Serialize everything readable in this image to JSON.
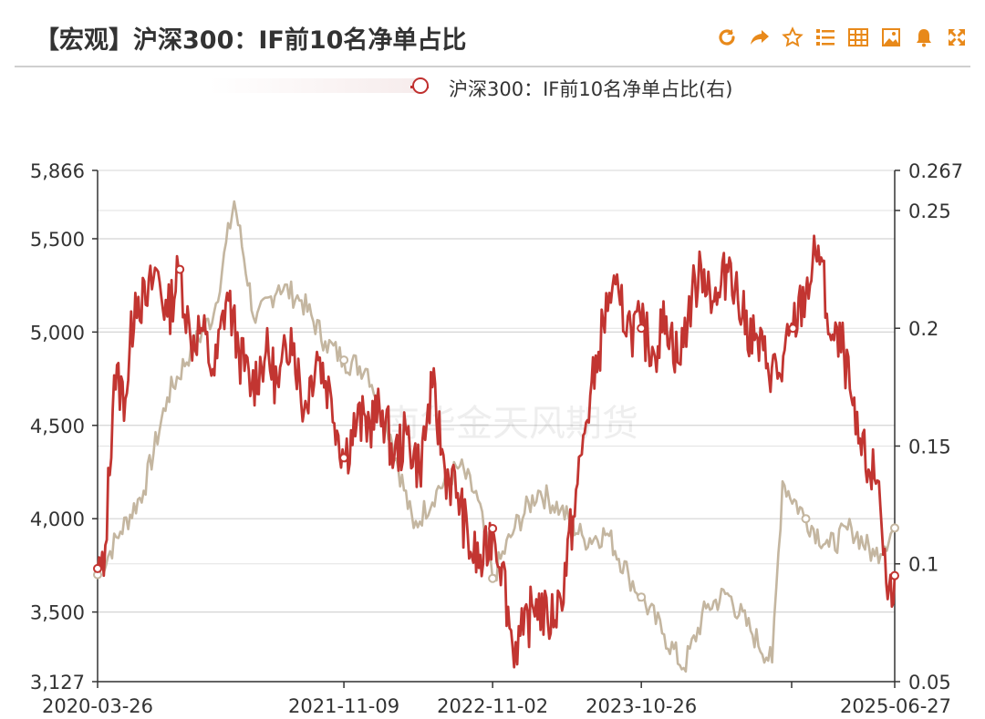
{
  "header": {
    "title": "【宏观】沪深300：IF前10名净单占比",
    "toolbar": [
      {
        "name": "refresh-icon",
        "glyph": "C"
      },
      {
        "name": "share-icon",
        "glyph": "➦"
      },
      {
        "name": "star-icon",
        "glyph": "☆"
      },
      {
        "name": "list-icon",
        "glyph": "≣"
      },
      {
        "name": "table-icon",
        "glyph": "▦"
      },
      {
        "name": "image-icon",
        "glyph": "▣"
      },
      {
        "name": "bell-icon",
        "glyph": "🔔"
      },
      {
        "name": "fullscreen-icon",
        "glyph": "⤢"
      }
    ],
    "accent_color": "#e8891a"
  },
  "legend": {
    "label": "沪深300：IF前10名净单占比(右)"
  },
  "watermark": "南华金天风期货",
  "chart_data": {
    "type": "line",
    "x_tick_labels": [
      "2020-03-26",
      "2021-11-09",
      "2022-11-02",
      "2023-10-26",
      "2025-06-27"
    ],
    "x_range": [
      "2020-03-26",
      "2025-06-27"
    ],
    "y_left": {
      "ticks": [
        "3,127",
        "3,500",
        "4,000",
        "4,500",
        "5,000",
        "5,500",
        "5,866"
      ],
      "range": [
        3127,
        5866
      ]
    },
    "y_right": {
      "ticks": [
        "0.05",
        "0.1",
        "0.15",
        "0.2",
        "0.25",
        "0.267"
      ],
      "range": [
        0.05,
        0.267
      ]
    },
    "grid": true,
    "legend_position": "top",
    "series": [
      {
        "name": "",
        "axis": "left",
        "color": "#c4b6a0",
        "x": [
          "2020-03-26",
          "2020-05-20",
          "2020-07-15",
          "2020-09-10",
          "2020-11-05",
          "2020-12-31",
          "2021-02-18",
          "2021-04-10",
          "2021-06-05",
          "2021-07-30",
          "2021-09-25",
          "2021-11-09",
          "2022-01-05",
          "2022-03-01",
          "2022-04-26",
          "2022-06-20",
          "2022-08-15",
          "2022-09-28",
          "2022-11-02",
          "2022-12-25",
          "2023-02-20",
          "2023-04-15",
          "2023-06-10",
          "2023-08-05",
          "2023-09-25",
          "2023-10-26",
          "2023-12-20",
          "2024-02-05",
          "2024-03-30",
          "2024-05-20",
          "2024-07-15",
          "2024-09-05",
          "2024-09-30",
          "2024-11-25",
          "2025-01-20",
          "2025-03-15",
          "2025-05-10",
          "2025-06-27"
        ],
        "y": [
          3700,
          3930,
          4150,
          4650,
          4900,
          5100,
          5700,
          5050,
          5250,
          5170,
          4950,
          4850,
          4800,
          4450,
          3950,
          4150,
          4280,
          4100,
          3680,
          3950,
          4150,
          4050,
          3890,
          3920,
          3700,
          3580,
          3380,
          3200,
          3520,
          3600,
          3400,
          3230,
          4200,
          4000,
          3850,
          3950,
          3800,
          3950
        ]
      },
      {
        "name": "沪深300：IF前10名净单占比(右)",
        "axis": "right",
        "color": "#c23531",
        "x": [
          "2020-03-26",
          "2020-04-10",
          "2020-05-05",
          "2020-06-01",
          "2020-06-25",
          "2020-07-20",
          "2020-08-15",
          "2020-09-10",
          "2020-10-10",
          "2020-11-05",
          "2020-12-01",
          "2021-01-01",
          "2021-02-01",
          "2021-03-01",
          "2021-04-01",
          "2021-05-05",
          "2021-06-05",
          "2021-07-05",
          "2021-08-05",
          "2021-09-05",
          "2021-10-10",
          "2021-11-09",
          "2021-12-10",
          "2022-01-10",
          "2022-02-10",
          "2022-03-10",
          "2022-04-10",
          "2022-05-10",
          "2022-06-10",
          "2022-07-10",
          "2022-08-10",
          "2022-09-10",
          "2022-10-10",
          "2022-11-02",
          "2022-11-25",
          "2022-12-20",
          "2023-01-15",
          "2023-02-15",
          "2023-03-15",
          "2023-04-15",
          "2023-05-15",
          "2023-06-15",
          "2023-07-15",
          "2023-08-10",
          "2023-09-05",
          "2023-10-01",
          "2023-10-26",
          "2023-11-25",
          "2023-12-25",
          "2024-01-25",
          "2024-02-25",
          "2024-03-25",
          "2024-04-25",
          "2024-05-25",
          "2024-06-25",
          "2024-07-25",
          "2024-08-25",
          "2024-09-25",
          "2024-10-25",
          "2024-11-25",
          "2024-12-25",
          "2025-01-25",
          "2025-02-25",
          "2025-03-25",
          "2025-04-25",
          "2025-05-20",
          "2025-06-10",
          "2025-06-27"
        ],
        "y": [
          0.098,
          0.095,
          0.18,
          0.17,
          0.215,
          0.21,
          0.225,
          0.205,
          0.225,
          0.195,
          0.2,
          0.18,
          0.215,
          0.19,
          0.175,
          0.19,
          0.175,
          0.2,
          0.165,
          0.19,
          0.17,
          0.145,
          0.16,
          0.16,
          0.165,
          0.145,
          0.155,
          0.14,
          0.175,
          0.14,
          0.13,
          0.105,
          0.1,
          0.115,
          0.1,
          0.065,
          0.07,
          0.085,
          0.075,
          0.085,
          0.12,
          0.16,
          0.19,
          0.215,
          0.21,
          0.2,
          0.2,
          0.19,
          0.205,
          0.185,
          0.215,
          0.225,
          0.21,
          0.23,
          0.205,
          0.195,
          0.185,
          0.18,
          0.2,
          0.215,
          0.235,
          0.195,
          0.19,
          0.155,
          0.14,
          0.135,
          0.085,
          0.095
        ]
      }
    ]
  }
}
